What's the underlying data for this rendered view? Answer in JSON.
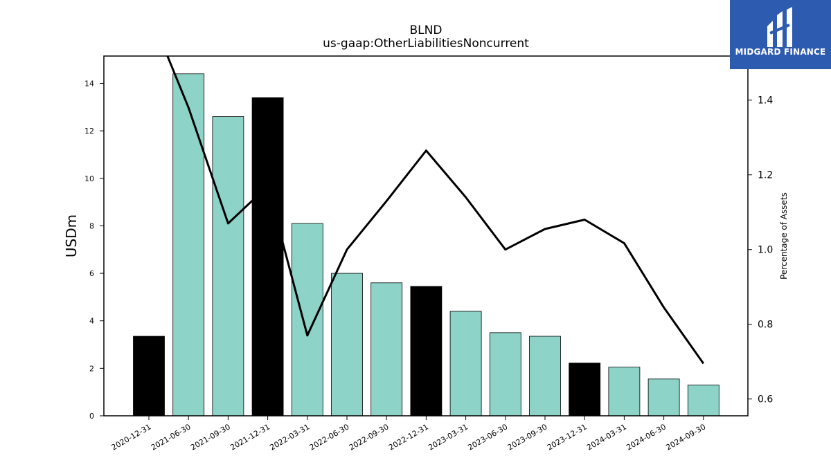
{
  "branding": {
    "name": "MIDGARD FINANCE",
    "icon": "midgard-logo-icon",
    "background_color": "#2d5bb0"
  },
  "chart_data": {
    "type": "bar",
    "title": "BLND",
    "subtitle": "us-gaap:OtherLiabilitiesNoncurrent",
    "ylabel": "USDm",
    "y2label": "Percentage of Assets",
    "categories": [
      "2020-12-31",
      "2021-06-30",
      "2021-09-30",
      "2021-12-31",
      "2022-03-31",
      "2022-06-30",
      "2022-09-30",
      "2022-12-31",
      "2023-03-31",
      "2023-06-30",
      "2023-09-30",
      "2023-12-31",
      "2024-03-31",
      "2024-06-30",
      "2024-09-30"
    ],
    "series": [
      {
        "axis": "left",
        "kind": "bar",
        "values": [
          3.35,
          14.4,
          12.6,
          13.4,
          8.1,
          6.0,
          5.6,
          5.45,
          4.4,
          3.5,
          3.35,
          2.22,
          2.05,
          1.55,
          1.3
        ]
      },
      {
        "axis": "right",
        "kind": "line",
        "values": [
          1.64,
          1.38,
          1.07,
          1.17,
          0.77,
          1.0,
          1.13,
          1.265,
          1.14,
          1.0,
          1.055,
          1.08,
          1.017,
          0.845,
          0.695
        ]
      }
    ],
    "bar_colors": [
      "#000000",
      "#8dd3c7",
      "#8dd3c7",
      "#000000",
      "#8dd3c7",
      "#8dd3c7",
      "#8dd3c7",
      "#000000",
      "#8dd3c7",
      "#8dd3c7",
      "#8dd3c7",
      "#000000",
      "#8dd3c7",
      "#8dd3c7",
      "#8dd3c7"
    ],
    "line_color": "#000000",
    "ylim": [
      0,
      15.15
    ],
    "y2lim": [
      0.555,
      1.518
    ],
    "yticks": [
      "0",
      "2",
      "4",
      "6",
      "8",
      "10",
      "12",
      "14"
    ],
    "y2ticks": [
      "0.6",
      "0.8",
      "1.0",
      "1.2",
      "1.4"
    ],
    "grid": false,
    "legend": "none"
  }
}
